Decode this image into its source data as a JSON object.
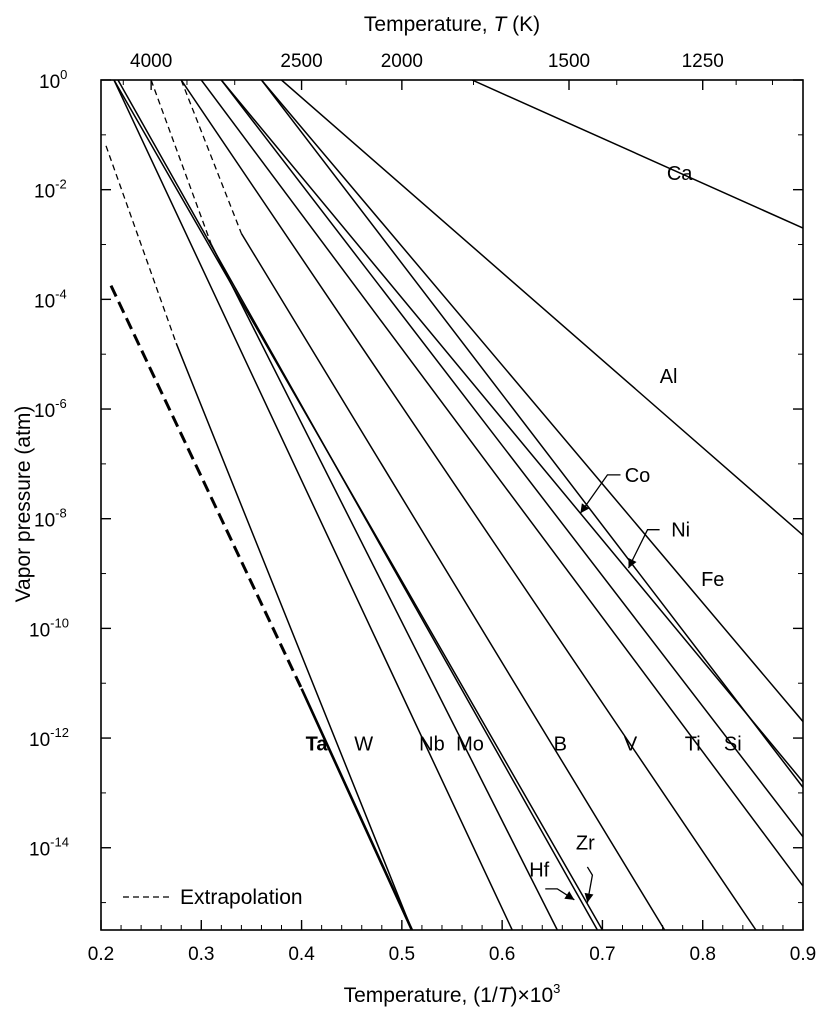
{
  "chart_data": {
    "type": "line",
    "title": "",
    "xlabel": "Temperature, (1/T)×10^3",
    "xlabel_parts": {
      "prefix": "Temperature, (1/",
      "var": "T",
      "suffix": ")×10",
      "exp": "3"
    },
    "ylabel": "Vapor pressure (atm)",
    "top_axis_label": "Temperature, T (K)",
    "top_axis_parts": {
      "prefix": "Temperature, ",
      "var": "T",
      "suffix": " (K)"
    },
    "x_range": [
      0.2,
      0.9
    ],
    "y_range_log10": [
      -15.5,
      0
    ],
    "x_ticks": [
      {
        "value": 0.2,
        "label": "0.2"
      },
      {
        "value": 0.3,
        "label": "0.3"
      },
      {
        "value": 0.4,
        "label": "0.4"
      },
      {
        "value": 0.5,
        "label": "0.5"
      },
      {
        "value": 0.6,
        "label": "0.6"
      },
      {
        "value": 0.7,
        "label": "0.7"
      },
      {
        "value": 0.8,
        "label": "0.8"
      },
      {
        "value": 0.9,
        "label": "0.9"
      }
    ],
    "top_ticks": [
      {
        "kelvin": 4000,
        "label": "4000"
      },
      {
        "kelvin": 2500,
        "label": "2500"
      },
      {
        "kelvin": 2000,
        "label": "2000"
      },
      {
        "kelvin": 1500,
        "label": "1500"
      },
      {
        "kelvin": 1250,
        "label": "1250"
      }
    ],
    "y_ticks": [
      {
        "exp": 0,
        "base": "10",
        "sup": "0"
      },
      {
        "exp": -2,
        "base": "10",
        "sup": "-2"
      },
      {
        "exp": -4,
        "base": "10",
        "sup": "-4"
      },
      {
        "exp": -6,
        "base": "10",
        "sup": "-6"
      },
      {
        "exp": -8,
        "base": "10",
        "sup": "-8"
      },
      {
        "exp": -10,
        "base": "10",
        "sup": "-10"
      },
      {
        "exp": -12,
        "base": "10",
        "sup": "-12"
      },
      {
        "exp": -14,
        "base": "10",
        "sup": "-14"
      }
    ],
    "series": [
      {
        "name": "Ta",
        "bold": true,
        "points": [
          [
            0.21,
            -3.75
          ],
          [
            0.4,
            -11.1
          ]
        ],
        "extrap_to": 0.4,
        "solid": [
          [
            0.4,
            -11.1
          ],
          [
            0.51,
            -15.5
          ]
        ]
      },
      {
        "name": "W",
        "bold": false,
        "points": [
          [
            0.205,
            -1.2
          ],
          [
            0.275,
            -4.8
          ]
        ],
        "extrap_to": 0.275,
        "solid": [
          [
            0.275,
            -4.8
          ],
          [
            0.51,
            -15.5
          ]
        ]
      },
      {
        "name": "Nb",
        "bold": false,
        "points": [
          [
            0.213,
            0
          ],
          [
            0.61,
            -15.5
          ]
        ],
        "extrap_to": 0.213
      },
      {
        "name": "Mo",
        "bold": false,
        "points": [
          [
            0.25,
            0
          ],
          [
            0.31,
            -3.0
          ],
          [
            0.655,
            -15.5
          ]
        ],
        "extrap_to": 0.31
      },
      {
        "name": "Hf",
        "bold": false,
        "points": [
          [
            0.217,
            0
          ],
          [
            0.695,
            -15.5
          ]
        ],
        "extrap_to": 0.217
      },
      {
        "name": "Zr",
        "bold": false,
        "points": [
          [
            0.213,
            0
          ],
          [
            0.7,
            -15.5
          ]
        ],
        "extrap_to": 0.213
      },
      {
        "name": "B",
        "bold": false,
        "points": [
          [
            0.28,
            0
          ],
          [
            0.34,
            -2.8
          ],
          [
            0.762,
            -15.5
          ]
        ],
        "extrap_to": 0.34
      },
      {
        "name": "V",
        "bold": false,
        "points": [
          [
            0.28,
            0
          ],
          [
            0.853,
            -15.5
          ]
        ],
        "extrap_to": 0.28
      },
      {
        "name": "Ti",
        "bold": false,
        "points": [
          [
            0.3,
            0
          ],
          [
            0.9,
            -14.7
          ]
        ],
        "extrap_to": 0.3
      },
      {
        "name": "Si",
        "bold": false,
        "points": [
          [
            0.32,
            0
          ],
          [
            0.9,
            -13.8
          ]
        ],
        "extrap_to": 0.32
      },
      {
        "name": "Co",
        "bold": false,
        "points": [
          [
            0.32,
            0
          ],
          [
            0.9,
            -12.8
          ]
        ],
        "extrap_to": 0.32
      },
      {
        "name": "Ni",
        "bold": false,
        "points": [
          [
            0.36,
            0
          ],
          [
            0.9,
            -12.9
          ]
        ],
        "extrap_to": 0.36
      },
      {
        "name": "Fe",
        "bold": false,
        "points": [
          [
            0.36,
            0
          ],
          [
            0.9,
            -11.7
          ]
        ],
        "extrap_to": 0.36
      },
      {
        "name": "Al",
        "bold": false,
        "points": [
          [
            0.38,
            0
          ],
          [
            0.9,
            -8.3
          ]
        ],
        "extrap_to": 0.38
      },
      {
        "name": "Ca",
        "bold": false,
        "points": [
          [
            0.57,
            0
          ],
          [
            0.9,
            -2.7
          ]
        ],
        "extrap_to": 0.57
      }
    ],
    "series_labels": [
      {
        "text": "Ta",
        "bold": true,
        "x": 0.415,
        "logp": -12.1
      },
      {
        "text": "W",
        "bold": false,
        "x": 0.462,
        "logp": -12.1
      },
      {
        "text": "Nb",
        "bold": false,
        "x": 0.53,
        "logp": -12.1
      },
      {
        "text": "Mo",
        "bold": false,
        "x": 0.568,
        "logp": -12.1
      },
      {
        "text": "B",
        "bold": false,
        "x": 0.658,
        "logp": -12.1
      },
      {
        "text": "V",
        "bold": false,
        "x": 0.728,
        "logp": -12.1
      },
      {
        "text": "Ti",
        "bold": false,
        "x": 0.79,
        "logp": -12.1
      },
      {
        "text": "Si",
        "bold": false,
        "x": 0.83,
        "logp": -12.1
      },
      {
        "text": "Fe",
        "bold": false,
        "x": 0.81,
        "logp": -9.1
      },
      {
        "text": "Al",
        "bold": false,
        "x": 0.766,
        "logp": -5.4
      },
      {
        "text": "Ca",
        "bold": false,
        "x": 0.777,
        "logp": -1.7
      },
      {
        "text": "Co",
        "bold": false,
        "x": 0.735,
        "logp": -7.2
      },
      {
        "text": "Ni",
        "bold": false,
        "x": 0.778,
        "logp": -8.2
      },
      {
        "text": "Hf",
        "bold": false,
        "x": 0.637,
        "logp": -14.4
      },
      {
        "text": "Zr",
        "bold": false,
        "x": 0.683,
        "logp": -13.9
      }
    ],
    "callouts": [
      {
        "name": "Co",
        "from": [
          0.718,
          -7.2
        ],
        "elbow": [
          0.705,
          -7.2
        ],
        "to": [
          0.678,
          -7.9
        ]
      },
      {
        "name": "Ni",
        "from": [
          0.757,
          -8.2
        ],
        "elbow": [
          0.745,
          -8.2
        ],
        "to": [
          0.726,
          -8.9
        ]
      },
      {
        "name": "Hf",
        "from": [
          0.643,
          -14.75
        ],
        "elbow": [
          0.655,
          -14.75
        ],
        "to": [
          0.672,
          -14.95
        ]
      },
      {
        "name": "Zr",
        "from": [
          0.685,
          -14.35
        ],
        "elbow": [
          0.69,
          -14.5
        ],
        "to": [
          0.685,
          -15.0
        ]
      }
    ],
    "legend": {
      "text": "Extrapolation",
      "style": "dashed",
      "placement": "bottom-left"
    }
  }
}
